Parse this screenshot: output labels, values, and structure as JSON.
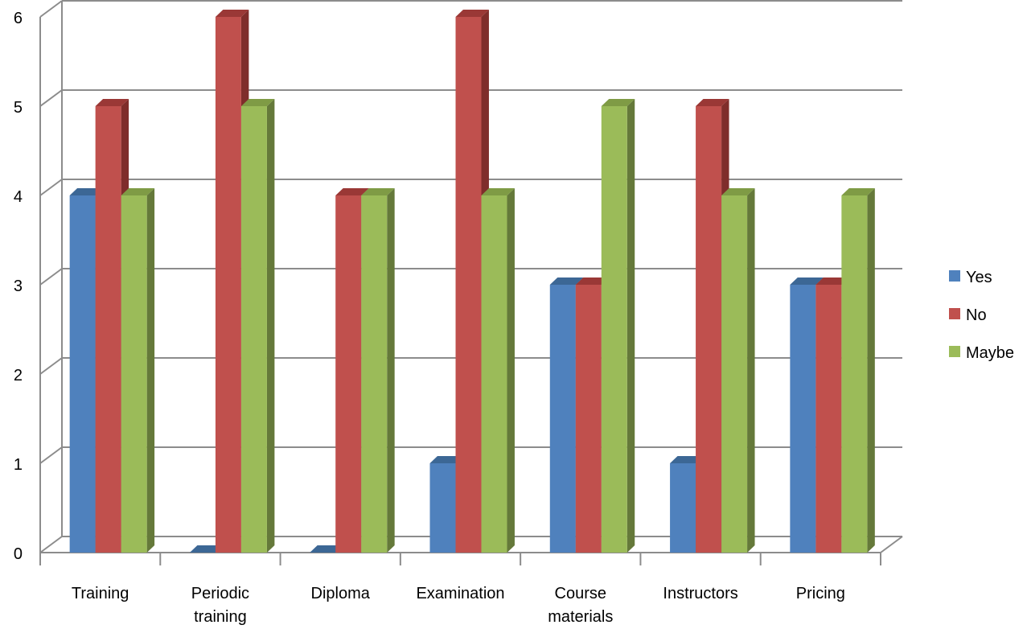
{
  "chart_data": {
    "type": "bar",
    "style": "3d-clustered-column",
    "title": "",
    "xlabel": "",
    "ylabel": "",
    "categories": [
      [
        "Training"
      ],
      [
        "Periodic",
        "training"
      ],
      [
        "Diploma"
      ],
      [
        "Examination"
      ],
      [
        "Course",
        "materials"
      ],
      [
        "Instructors"
      ],
      [
        "Pricing"
      ]
    ],
    "series": [
      {
        "name": "Yes",
        "values": [
          4,
          0,
          0,
          1,
          3,
          1,
          3
        ]
      },
      {
        "name": "No",
        "values": [
          5,
          6,
          4,
          6,
          3,
          5,
          3
        ]
      },
      {
        "name": "Maybe",
        "values": [
          4,
          5,
          4,
          4,
          5,
          4,
          4
        ]
      }
    ],
    "ylim": [
      0,
      6
    ],
    "yticks": [
      0,
      1,
      2,
      3,
      4,
      5,
      6
    ],
    "grid": true,
    "legend": "right",
    "colors": {
      "Yes": {
        "front": "#4f81bd",
        "top": "#3c6795",
        "side": "#34597f"
      },
      "No": {
        "front": "#c0504d",
        "top": "#9a3836",
        "side": "#7f2d2b"
      },
      "Maybe": {
        "front": "#9bbb59",
        "top": "#7f9b45",
        "side": "#65793a"
      }
    }
  }
}
